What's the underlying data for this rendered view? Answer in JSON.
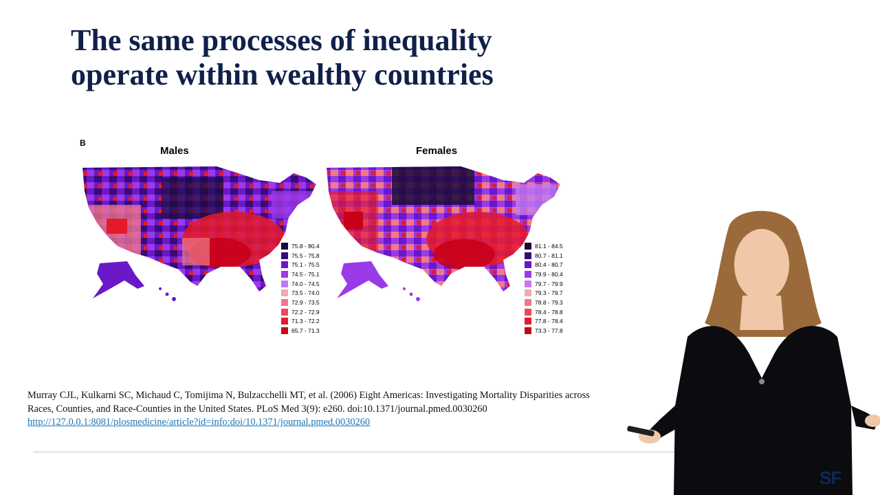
{
  "slide": {
    "title_lines": [
      "The same processes of inequality",
      "operate within wealthy countries"
    ],
    "panel_letter": "B",
    "maps": [
      {
        "title": "Males",
        "legend": [
          {
            "label": "75.8 - 80.4",
            "color": "#1a0a3a"
          },
          {
            "label": "75.5 - 75.8",
            "color": "#3a0a7a"
          },
          {
            "label": "75.1 - 75.5",
            "color": "#6a18c8"
          },
          {
            "label": "74.5 - 75.1",
            "color": "#9a3ae8"
          },
          {
            "label": "74.0 - 74.5",
            "color": "#c07af0"
          },
          {
            "label": "73.5 - 74.0",
            "color": "#f2a8b8"
          },
          {
            "label": "72.9 - 73.5",
            "color": "#f07a8a"
          },
          {
            "label": "72.2 - 72.9",
            "color": "#ea4a5a"
          },
          {
            "label": "71.3 - 72.2",
            "color": "#e51a2a"
          },
          {
            "label": "65.7 - 71.3",
            "color": "#c8001a"
          }
        ]
      },
      {
        "title": "Females",
        "legend": [
          {
            "label": "81.1 - 84.5",
            "color": "#1a0a3a"
          },
          {
            "label": "80.7 - 81.1",
            "color": "#3a0a7a"
          },
          {
            "label": "80.4 - 80.7",
            "color": "#6a18c8"
          },
          {
            "label": "79.9 - 80.4",
            "color": "#9a3ae8"
          },
          {
            "label": "79.7 - 79.9",
            "color": "#c07af0"
          },
          {
            "label": "79.3 - 79.7",
            "color": "#f2a8b8"
          },
          {
            "label": "78.8 - 79.3",
            "color": "#f07a8a"
          },
          {
            "label": "78.4 - 78.8",
            "color": "#ea4a5a"
          },
          {
            "label": "77.8 - 78.4",
            "color": "#e51a2a"
          },
          {
            "label": "73.3 - 77.8",
            "color": "#c8001a"
          }
        ]
      }
    ],
    "citation": {
      "line1": "Murray CJL, Kulkarni SC, Michaud C, Tomijima N, Bulzacchelli MT, et al. (2006) Eight Americas: Investigating Mortality Disparities across",
      "line2": "Races, Counties, and Race-Counties in the United States. PLoS Med 3(9): e260. doi:10.1371/journal.pmed.0030260",
      "link": "http://127.0.0.1:8081/plosmedicine/article?id=info:doi/10.1371/journal.pmed.0030260"
    },
    "logo_text": "SF"
  }
}
